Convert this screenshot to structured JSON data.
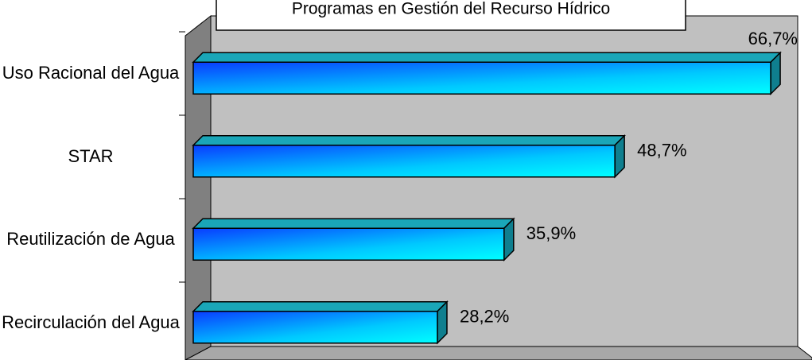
{
  "chart_data": {
    "type": "bar",
    "orientation": "horizontal",
    "title": "Programas en Gestión del Recurso Hídrico",
    "categories": [
      "Uso Racional del Agua",
      "STAR",
      "Reutilización de Agua",
      "Recirculación del Agua"
    ],
    "values": [
      66.7,
      48.7,
      35.9,
      28.2
    ],
    "value_labels": [
      "66,7%",
      "48,7%",
      "35,9%",
      "28,2%"
    ],
    "xlim": [
      0,
      70
    ]
  }
}
